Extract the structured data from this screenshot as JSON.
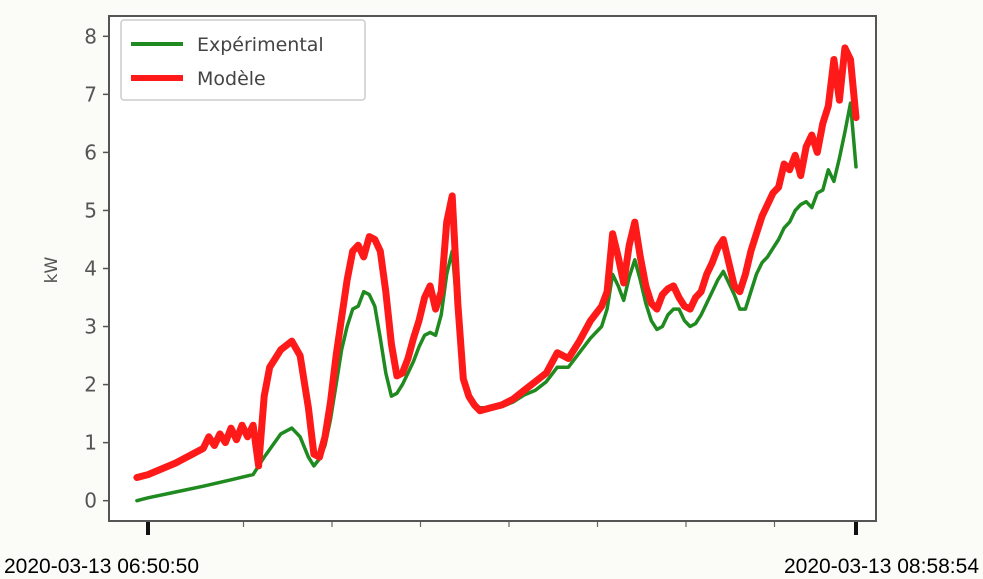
{
  "chart_data": {
    "type": "line",
    "title": "",
    "xlabel": "",
    "ylabel": "kW",
    "ylim": [
      -0.35,
      8.35
    ],
    "xlim": [
      0,
      128
    ],
    "yticks": [
      "0",
      "1",
      "2",
      "3",
      "4",
      "5",
      "6",
      "7",
      "8"
    ],
    "xticks": [
      "2020-03-13  06:50:50",
      "2020-03-13  08:58:54"
    ],
    "grid": false,
    "legend_position": "top-left",
    "series": [
      {
        "name": "Expérimental",
        "color": "#1f8a1f",
        "x": [
          -2,
          0,
          5,
          10,
          15,
          19,
          21,
          24,
          26,
          27.5,
          29,
          30,
          31,
          32,
          33,
          34,
          35,
          36,
          37,
          38,
          39,
          40,
          41,
          42,
          43,
          44,
          45,
          46,
          47,
          48,
          49,
          50,
          51,
          52,
          53,
          54,
          55,
          56,
          57,
          58,
          59,
          60,
          62,
          64,
          66,
          68,
          70,
          72,
          74,
          76,
          78,
          80,
          82,
          83,
          84,
          85,
          86,
          87,
          88,
          89,
          90,
          91,
          92,
          93,
          94,
          95,
          96,
          97,
          98,
          99,
          100,
          101,
          102,
          103,
          104,
          105,
          106,
          107,
          108,
          109,
          110,
          111,
          112,
          113,
          114,
          115,
          116,
          117,
          118,
          119,
          120,
          121,
          122,
          123,
          124,
          125,
          126,
          127,
          128
        ],
        "values": [
          0.0,
          0.05,
          0.15,
          0.25,
          0.36,
          0.45,
          0.75,
          1.15,
          1.25,
          1.1,
          0.75,
          0.6,
          0.72,
          0.95,
          1.4,
          2.0,
          2.6,
          3.0,
          3.3,
          3.35,
          3.6,
          3.55,
          3.35,
          2.8,
          2.2,
          1.8,
          1.85,
          2.0,
          2.2,
          2.4,
          2.65,
          2.85,
          2.9,
          2.85,
          3.2,
          3.9,
          4.3,
          3.2,
          2.2,
          1.8,
          1.65,
          1.6,
          1.6,
          1.62,
          1.7,
          1.82,
          1.9,
          2.05,
          2.3,
          2.3,
          2.55,
          2.8,
          3.0,
          3.3,
          3.9,
          3.7,
          3.45,
          3.85,
          4.15,
          3.8,
          3.4,
          3.1,
          2.95,
          3.0,
          3.2,
          3.3,
          3.3,
          3.1,
          3.0,
          3.05,
          3.2,
          3.4,
          3.6,
          3.8,
          3.95,
          3.75,
          3.55,
          3.3,
          3.3,
          3.6,
          3.9,
          4.1,
          4.2,
          4.35,
          4.5,
          4.7,
          4.8,
          5.0,
          5.1,
          5.15,
          5.05,
          5.3,
          5.35,
          5.7,
          5.5,
          5.9,
          6.35,
          6.85,
          5.75
        ]
      },
      {
        "name": "Modèle",
        "color": "#ff1a1a",
        "x": [
          -2,
          0,
          5,
          10,
          11,
          12,
          13,
          14,
          15,
          16,
          17,
          18,
          19,
          20,
          21,
          22,
          24,
          26,
          27.5,
          29,
          30,
          31,
          32,
          33,
          34,
          35,
          36,
          37,
          38,
          39,
          40,
          41,
          42,
          43,
          44,
          45,
          46,
          47,
          48,
          49,
          50,
          51,
          52,
          53,
          54,
          55,
          56,
          57,
          58,
          59,
          60,
          62,
          64,
          66,
          68,
          70,
          72,
          74,
          76,
          78,
          80,
          82,
          83,
          84,
          85,
          86,
          87,
          88,
          89,
          90,
          91,
          92,
          93,
          94,
          95,
          96,
          97,
          98,
          99,
          100,
          101,
          102,
          103,
          104,
          105,
          106,
          107,
          108,
          109,
          110,
          111,
          112,
          113,
          114,
          115,
          116,
          117,
          118,
          119,
          120,
          121,
          122,
          123,
          124,
          125,
          126,
          127,
          128
        ],
        "values": [
          0.4,
          0.45,
          0.65,
          0.9,
          1.1,
          0.95,
          1.15,
          1.0,
          1.25,
          1.05,
          1.3,
          1.1,
          1.3,
          0.6,
          1.8,
          2.3,
          2.6,
          2.75,
          2.5,
          1.6,
          0.8,
          0.75,
          1.1,
          1.7,
          2.5,
          3.15,
          3.8,
          4.3,
          4.4,
          4.2,
          4.55,
          4.5,
          4.3,
          3.6,
          2.7,
          2.15,
          2.2,
          2.45,
          2.8,
          3.1,
          3.5,
          3.7,
          3.3,
          3.6,
          4.8,
          5.25,
          3.4,
          2.1,
          1.8,
          1.65,
          1.55,
          1.6,
          1.65,
          1.75,
          1.9,
          2.05,
          2.2,
          2.55,
          2.45,
          2.75,
          3.1,
          3.35,
          3.6,
          4.6,
          4.2,
          3.75,
          4.4,
          4.8,
          4.2,
          3.7,
          3.4,
          3.3,
          3.55,
          3.65,
          3.7,
          3.5,
          3.35,
          3.3,
          3.5,
          3.6,
          3.9,
          4.1,
          4.35,
          4.5,
          4.1,
          3.7,
          3.6,
          3.9,
          4.3,
          4.6,
          4.9,
          5.1,
          5.3,
          5.4,
          5.8,
          5.7,
          5.95,
          5.6,
          6.1,
          6.3,
          6.0,
          6.5,
          6.8,
          7.6,
          6.9,
          7.8,
          7.6,
          6.6
        ]
      }
    ]
  }
}
